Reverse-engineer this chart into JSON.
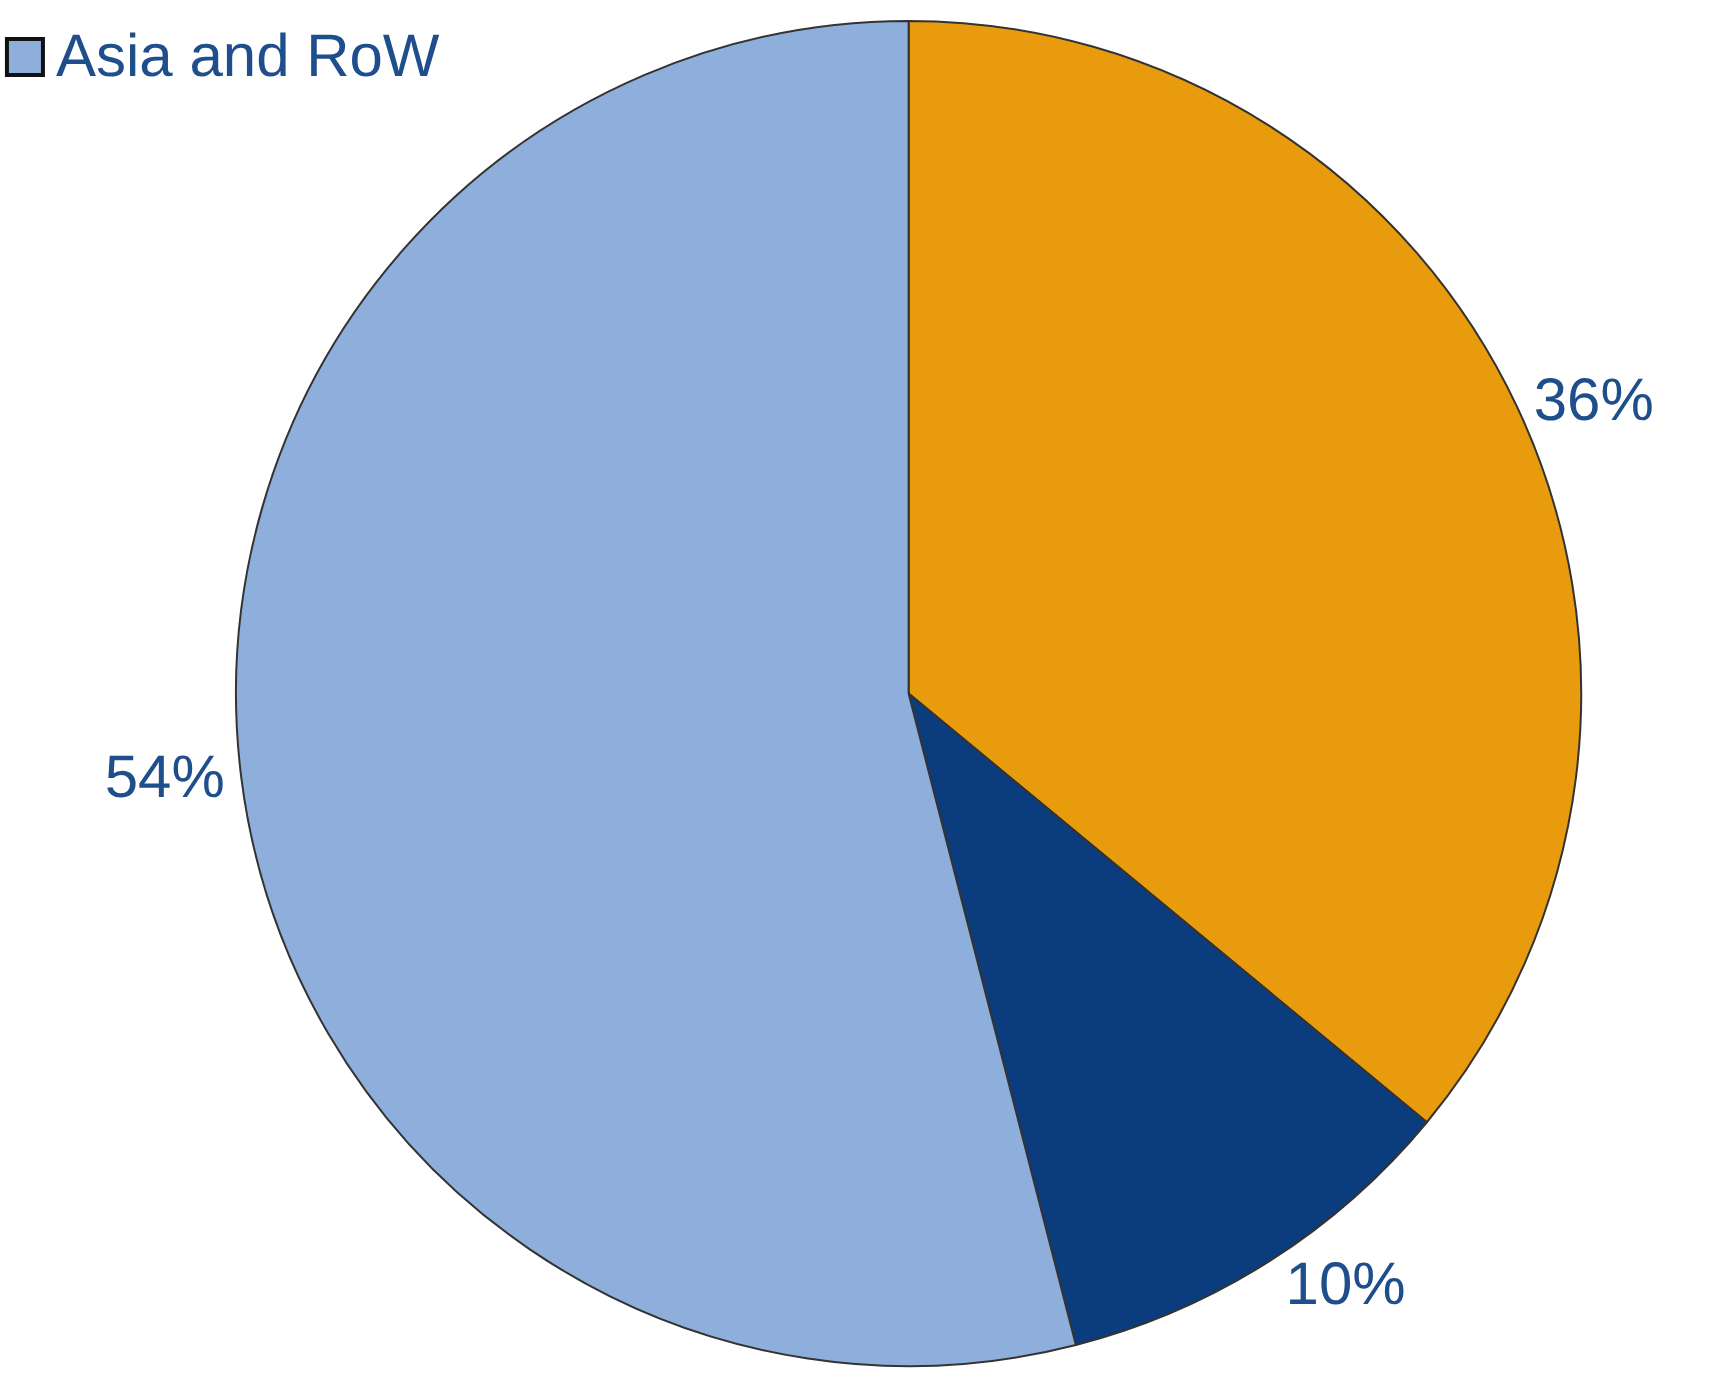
{
  "chart_data": {
    "type": "pie",
    "categories": [
      null,
      null,
      "Asia and RoW"
    ],
    "values": [
      36,
      10,
      54
    ],
    "value_labels": [
      "36%",
      "10%",
      "54%"
    ],
    "colors": [
      "#e89b0c",
      "#0b3d7e",
      "#8eafdc"
    ],
    "legend": "top left"
  }
}
